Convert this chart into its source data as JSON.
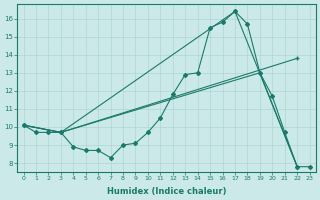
{
  "xlabel": "Humidex (Indice chaleur)",
  "bg_color": "#cce9e9",
  "line_color": "#1a7a6a",
  "grid_color": "#b0d4d4",
  "xlim": [
    -0.5,
    23.5
  ],
  "ylim": [
    7.5,
    16.8
  ],
  "yticks": [
    8,
    9,
    10,
    11,
    12,
    13,
    14,
    15,
    16
  ],
  "xticks": [
    0,
    1,
    2,
    3,
    4,
    5,
    6,
    7,
    8,
    9,
    10,
    11,
    12,
    13,
    14,
    15,
    16,
    17,
    18,
    19,
    20,
    21,
    22,
    23
  ],
  "line1_x": [
    0,
    1,
    2,
    3,
    4,
    5,
    6,
    7,
    8,
    9,
    10,
    11,
    12,
    13,
    14,
    15,
    16,
    17,
    18,
    19,
    20,
    21,
    22,
    23
  ],
  "line1_y": [
    10.1,
    9.7,
    9.7,
    9.7,
    8.9,
    8.7,
    8.7,
    8.3,
    9.0,
    9.1,
    9.7,
    10.5,
    11.8,
    12.9,
    13.0,
    15.5,
    15.8,
    16.4,
    15.7,
    13.0,
    11.7,
    9.7,
    7.8,
    7.8
  ],
  "line2_x": [
    0,
    3,
    17,
    22
  ],
  "line2_y": [
    10.1,
    9.7,
    16.4,
    7.8
  ],
  "line3_x": [
    0,
    3,
    22
  ],
  "line3_y": [
    10.1,
    9.7,
    13.8
  ],
  "line4_x": [
    0,
    3,
    19,
    22
  ],
  "line4_y": [
    10.1,
    9.7,
    13.0,
    7.8
  ]
}
